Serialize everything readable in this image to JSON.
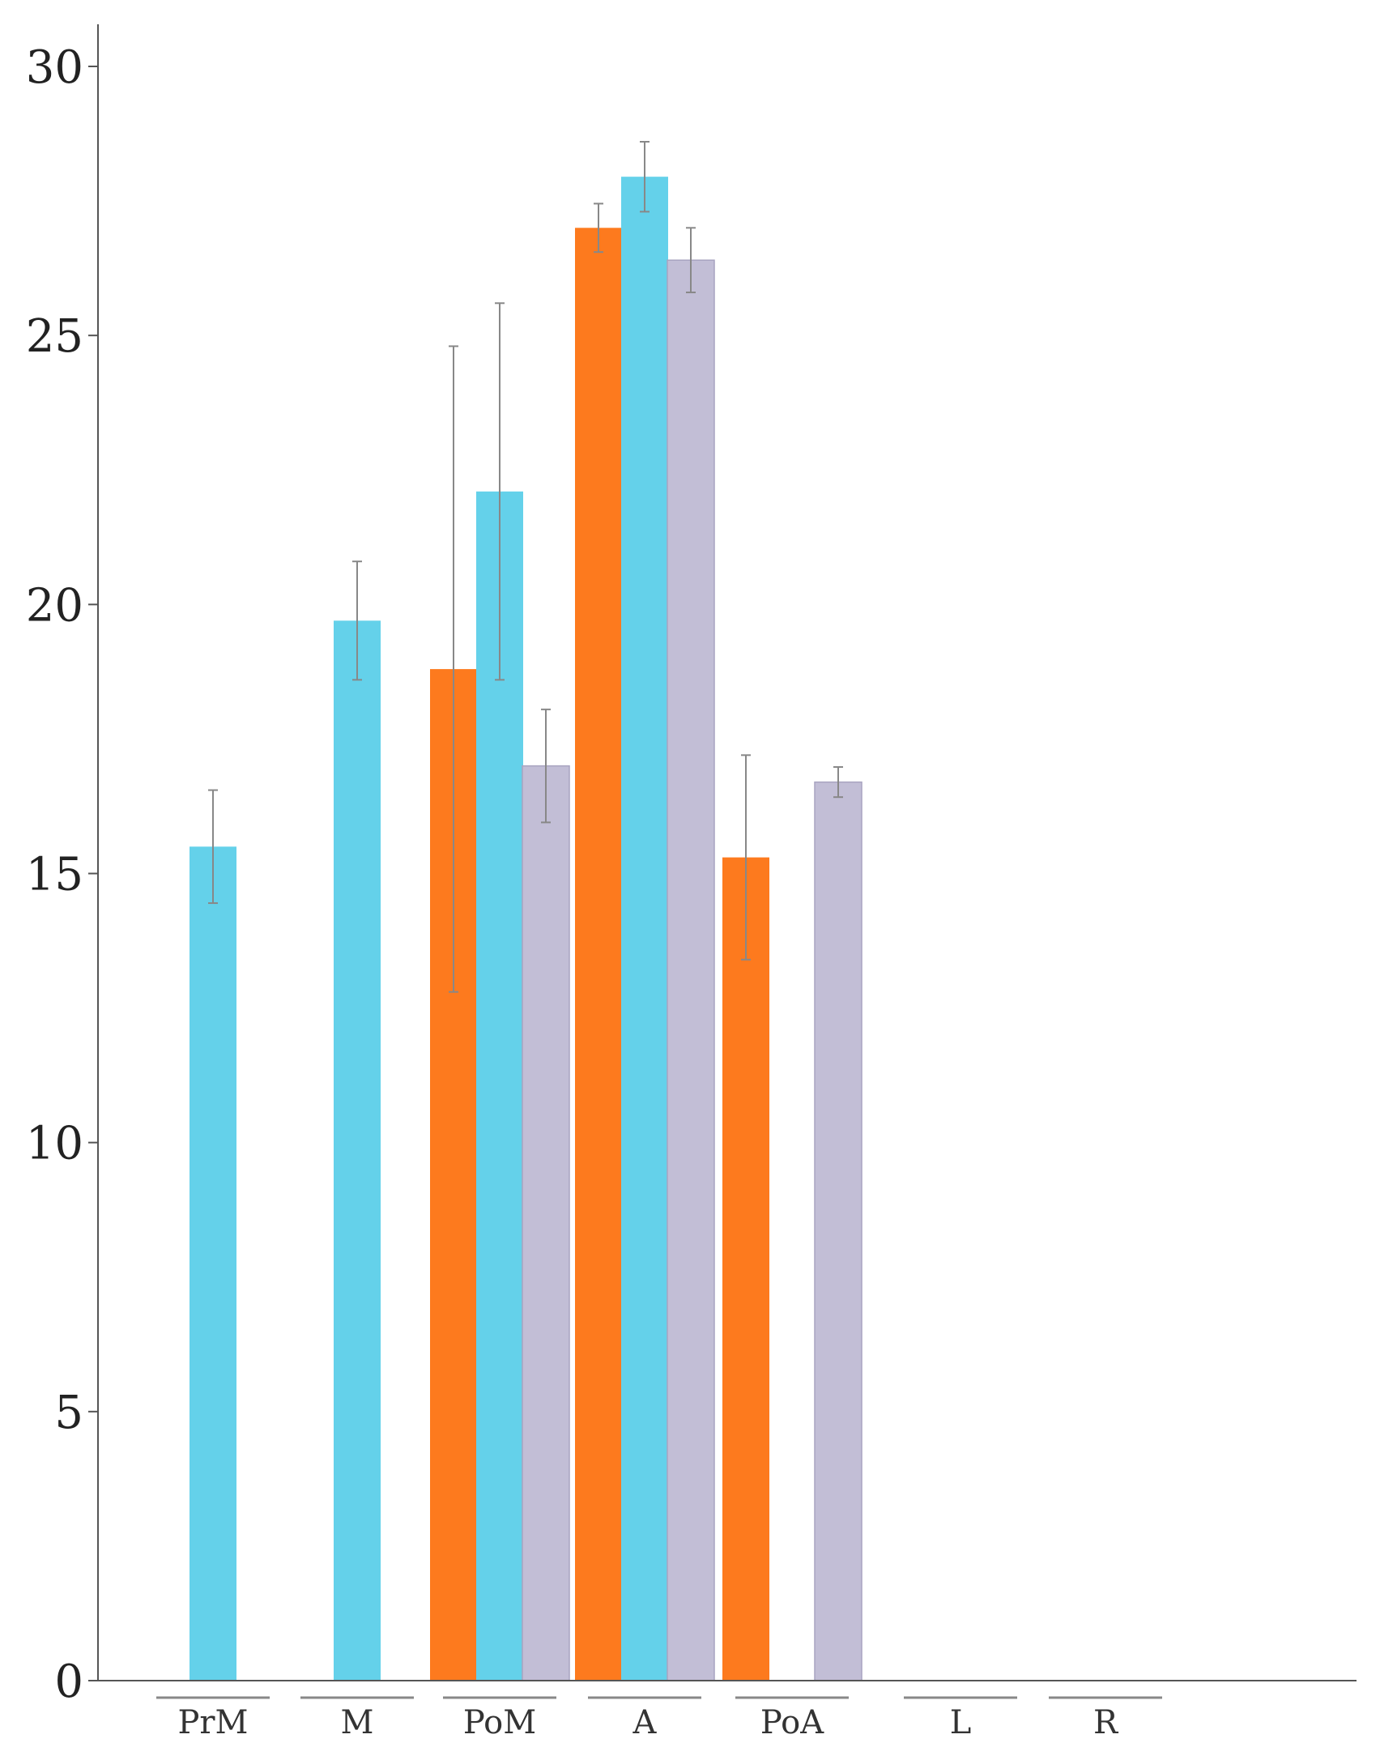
{
  "chart_data": {
    "type": "bar",
    "categories": [
      "PrM",
      "M",
      "PoM",
      "A",
      "PoA",
      "L",
      "R"
    ],
    "ylim": [
      0,
      30
    ],
    "yticks": [
      0,
      5,
      10,
      15,
      20,
      25,
      30
    ],
    "series": [
      {
        "color": "#fd7a1e",
        "values": [
          null,
          null,
          18.8,
          27.0,
          15.3,
          null,
          null
        ],
        "errors": [
          null,
          null,
          6.0,
          0.45,
          1.9,
          null,
          null
        ]
      },
      {
        "color": "#64d1ea",
        "values": [
          15.5,
          19.7,
          22.1,
          27.95,
          null,
          null,
          null
        ],
        "errors": [
          1.05,
          1.1,
          3.5,
          0.65,
          null,
          null,
          null
        ]
      },
      {
        "color": "#c2bed6",
        "values": [
          null,
          null,
          17.0,
          26.4,
          16.7,
          null,
          null
        ],
        "errors": [
          null,
          null,
          1.05,
          0.6,
          0.28,
          null,
          null
        ]
      }
    ],
    "xlabel": "",
    "ylabel": "",
    "grid": false,
    "error_bar_color": "#888888"
  }
}
